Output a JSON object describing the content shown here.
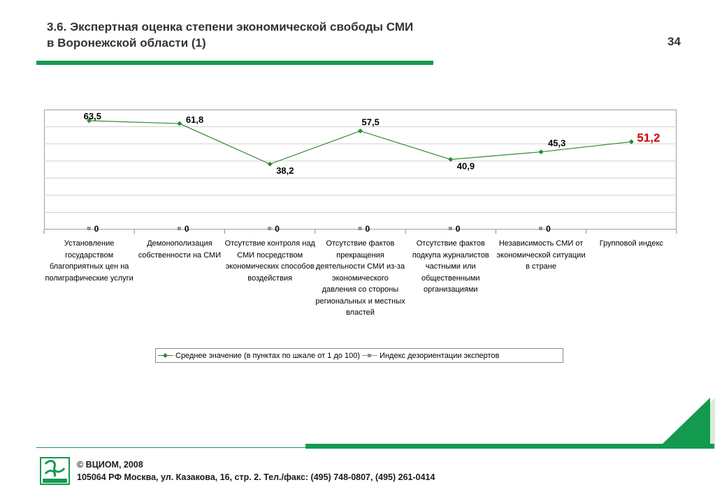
{
  "header": {
    "title_line1": "3.6. Экспертная оценка степени экономической свободы СМИ",
    "title_line2": "в Воронежской области (1)",
    "page_number": "34"
  },
  "colors": {
    "brand_green": "#139a4f",
    "series_main": "#2e8b2e",
    "series_index": "#909090",
    "highlight_red": "#d00000"
  },
  "chart_data": {
    "type": "line",
    "categories": [
      "Установление государством благоприятных цен на полиграфические услуги",
      "Демонополизация собственности на СМИ",
      "Отсутствие контроля над СМИ посредством экономических способов воздействия",
      "Отсутствие фактов прекращения деятельности СМИ из-за экономического давления со стороны региональных и местных властей",
      "Отсутствие фактов подкупа журналистов частными или общественными организациями",
      "Независимость СМИ от экономической ситуации в стране",
      "Групповой индекс"
    ],
    "series": [
      {
        "name": "Среднее значение (в пунктах по шкале от 1 до 100)",
        "values": [
          63.5,
          61.8,
          38.2,
          57.5,
          40.9,
          45.3,
          51.2
        ],
        "labels": [
          "63,5",
          "61,8",
          "38,2",
          "57,5",
          "40,9",
          "45,3",
          "51,2"
        ],
        "color": "#2e8b2e"
      },
      {
        "name": "Индекс дезориентации экспертов",
        "values": [
          0,
          0,
          0,
          0,
          0,
          0,
          null
        ],
        "labels": [
          "0",
          "0",
          "0",
          "0",
          "0",
          "0",
          ""
        ],
        "color": "#909090"
      }
    ],
    "ylim": [
      0,
      70
    ],
    "grid": true,
    "legend_position": "bottom"
  },
  "legend": {
    "item1": "Среднее значение (в пунктах по шкале от 1 до 100)",
    "item2": "Индекс дезориентации экспертов"
  },
  "footer": {
    "line1": "© ВЦИОМ, 2008",
    "line2": "105064 РФ Москва, ул. Казакова, 16, стр. 2.  Тел./факс: (495) 748-0807, (495) 261-0414",
    "logo_text": "ВЦИОМ"
  }
}
